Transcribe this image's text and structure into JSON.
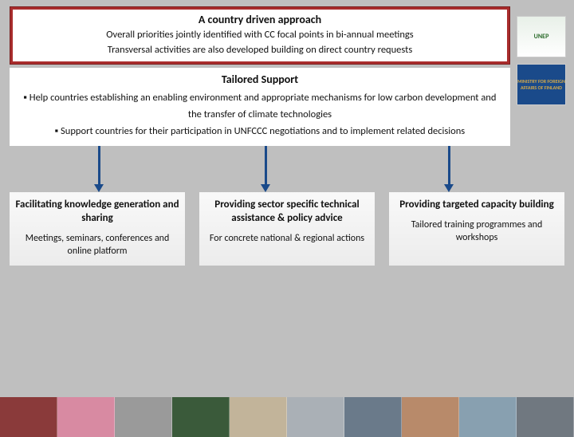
{
  "header": {
    "title": "A country driven approach",
    "line1": "Overall priorities jointly identified with CC focal points in bi-annual meetings",
    "line2": "Transversal activities are also developed building on direct country requests",
    "bg_color": "#a92c2c",
    "inner_bg": "#ffffff"
  },
  "logos": {
    "unep_label": "UNEP",
    "finland_label": "MINISTRY FOR FOREIGN AFFAIRS OF FINLAND"
  },
  "tailored": {
    "title": "Tailored Support",
    "bullet1": "▪ Help countries establishing an enabling environment and appropriate mechanisms for low carbon development and the transfer of climate technologies",
    "bullet2": "▪ Support  countries for their participation in UNFCCC negotiations and to implement related decisions"
  },
  "arrows": {
    "color": "#1a4a8a",
    "positions_pct": [
      16,
      46,
      79
    ]
  },
  "columns": [
    {
      "title": "Facilitating knowledge generation and sharing",
      "sub": "Meetings, seminars, conferences and online platform"
    },
    {
      "title": "Providing sector specific technical assistance & policy advice",
      "sub": "For concrete national & regional actions"
    },
    {
      "title": "Providing targeted capacity building",
      "sub": "Tailored training programmes and workshops"
    }
  ],
  "footer_tiles": [
    "#8a3a3a",
    "#d88aa2",
    "#9a9a9a",
    "#3a5a3a",
    "#c2b49a",
    "#aab0b6",
    "#6a7a8a",
    "#b88a6a",
    "#88a0b0",
    "#707880"
  ]
}
